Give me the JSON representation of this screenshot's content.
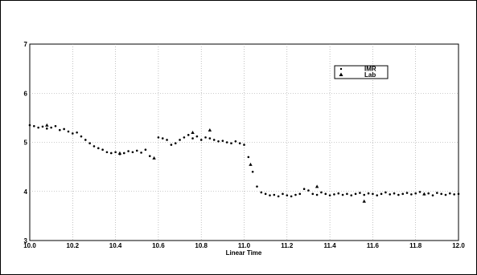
{
  "chart_data": {
    "type": "scatter",
    "title": "",
    "xlabel": "Linear Time",
    "ylabel": "",
    "xlim": [
      10.0,
      12.0
    ],
    "ylim": [
      3,
      7
    ],
    "x_ticks": [
      "10.0",
      "10.2",
      "10.4",
      "10.6",
      "10.8",
      "11.0",
      "11.2",
      "11.4",
      "11.6",
      "11.8",
      "12.0"
    ],
    "y_ticks": [
      "3",
      "4",
      "5",
      "6",
      "7"
    ],
    "grid": true,
    "legend_position": "top-right",
    "series": [
      {
        "name": "IMR",
        "marker": "dot",
        "x": [
          10.0,
          10.02,
          10.04,
          10.06,
          10.08,
          10.1,
          10.12,
          10.14,
          10.16,
          10.18,
          10.2,
          10.22,
          10.24,
          10.26,
          10.28,
          10.3,
          10.32,
          10.34,
          10.36,
          10.38,
          10.4,
          10.42,
          10.44,
          10.46,
          10.48,
          10.5,
          10.52,
          10.54,
          10.56,
          10.6,
          10.62,
          10.64,
          10.66,
          10.68,
          10.7,
          10.72,
          10.74,
          10.76,
          10.78,
          10.8,
          10.82,
          10.84,
          10.86,
          10.88,
          10.9,
          10.92,
          10.94,
          10.96,
          10.98,
          11.0,
          11.02,
          11.04,
          11.06,
          11.08,
          11.1,
          11.12,
          11.14,
          11.16,
          11.18,
          11.2,
          11.22,
          11.24,
          11.26,
          11.28,
          11.3,
          11.32,
          11.34,
          11.36,
          11.38,
          11.4,
          11.42,
          11.44,
          11.46,
          11.48,
          11.5,
          11.52,
          11.54,
          11.56,
          11.58,
          11.6,
          11.62,
          11.64,
          11.66,
          11.68,
          11.7,
          11.72,
          11.74,
          11.76,
          11.78,
          11.8,
          11.82,
          11.84,
          11.86,
          11.88,
          11.9,
          11.92,
          11.94,
          11.96,
          11.98,
          12.0
        ],
        "y": [
          5.35,
          5.33,
          5.3,
          5.32,
          5.28,
          5.3,
          5.33,
          5.25,
          5.27,
          5.22,
          5.18,
          5.2,
          5.12,
          5.05,
          4.98,
          4.92,
          4.88,
          4.85,
          4.8,
          4.78,
          4.8,
          4.76,
          4.78,
          4.82,
          4.8,
          4.83,
          4.79,
          4.85,
          4.72,
          5.1,
          5.08,
          5.05,
          4.95,
          4.98,
          5.05,
          5.1,
          5.15,
          5.08,
          5.12,
          5.05,
          5.1,
          5.08,
          5.05,
          5.02,
          5.03,
          5.0,
          4.98,
          5.02,
          4.98,
          4.95,
          4.7,
          4.4,
          4.1,
          3.98,
          3.95,
          3.92,
          3.93,
          3.9,
          3.95,
          3.92,
          3.9,
          3.93,
          3.95,
          4.05,
          4.02,
          3.95,
          3.93,
          3.98,
          3.95,
          3.92,
          3.94,
          3.96,
          3.93,
          3.95,
          3.92,
          3.95,
          3.97,
          3.93,
          3.96,
          3.95,
          3.92,
          3.95,
          3.98,
          3.94,
          3.96,
          3.93,
          3.95,
          3.97,
          3.94,
          3.96,
          3.99,
          3.94,
          3.96,
          3.92,
          3.97,
          3.95,
          3.93,
          3.96,
          3.94,
          3.95
        ]
      },
      {
        "name": "Lab",
        "marker": "triangle",
        "x": [
          10.08,
          10.42,
          10.58,
          10.76,
          10.84,
          11.03,
          11.34,
          11.56,
          11.84
        ],
        "y": [
          5.35,
          4.78,
          4.68,
          5.2,
          5.25,
          4.55,
          4.1,
          3.8,
          3.95
        ]
      }
    ]
  }
}
